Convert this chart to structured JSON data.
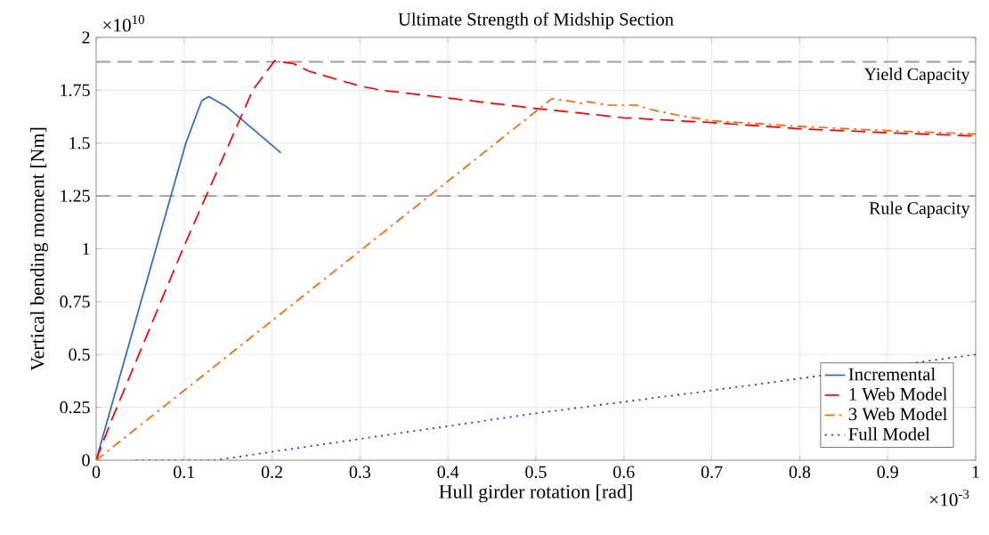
{
  "chart_data": {
    "type": "line",
    "title": "Ultimate Strength of Midship Section",
    "xlabel": "Hull girder rotation [rad]",
    "ylabel": "Vertical bending moment [Nm]",
    "series": [
      {
        "name": "Incremental",
        "color": "#3366cc",
        "line_style": "solid",
        "x": [
          0,
          0.102,
          0.12,
          0.128,
          0.149,
          0.21
        ],
        "values": [
          0,
          1.5,
          1.7,
          1.72,
          1.67,
          1.454
        ]
      },
      {
        "name": "1 Web Model",
        "color": "#ff0000",
        "line_style": "dashed",
        "x": [
          0,
          0.017,
          0.0986,
          0.178,
          0.203,
          0.225,
          0.242,
          0.3,
          0.325,
          0.5,
          0.6,
          0.7,
          0.8,
          0.9,
          1.0
        ],
        "values": [
          0,
          0.185,
          1.0,
          1.75,
          1.89,
          1.875,
          1.84,
          1.77,
          1.75,
          1.664,
          1.62,
          1.597,
          1.568,
          1.549,
          1.534
        ]
      },
      {
        "name": "3 Web Model",
        "color": "#ff6600",
        "line_style": "dashdot",
        "x": [
          0,
          0.518,
          0.541,
          0.55,
          0.557,
          0.582,
          0.6,
          0.614,
          0.63,
          0.664,
          0.7,
          0.8,
          0.9,
          1.0
        ],
        "values": [
          0,
          1.71,
          1.697,
          1.687,
          1.697,
          1.68,
          1.68,
          1.68,
          1.66,
          1.63,
          1.606,
          1.579,
          1.559,
          1.543
        ]
      },
      {
        "name": "Full Model",
        "color": "#7a0f7a",
        "line_style": "dotted",
        "x": [
          0.045,
          0.135,
          0.205,
          0.5,
          0.7,
          1.0
        ],
        "values": [
          0,
          0,
          0.043,
          0.222,
          0.33,
          0.5
        ]
      }
    ],
    "xlim": [
      0,
      1
    ],
    "ylim": [
      0,
      2
    ],
    "xticks": [
      0,
      0.1,
      0.2,
      0.3,
      0.4,
      0.5,
      0.6,
      0.7,
      0.8,
      0.9,
      1
    ],
    "yticks": [
      0,
      0.25,
      0.5,
      0.75,
      1,
      1.25,
      1.5,
      1.75,
      2
    ],
    "ref_lines": [
      {
        "axis": "y",
        "value": 1.884,
        "label": "Yield Capacity",
        "color": "#999999",
        "line_style": "dashed"
      },
      {
        "axis": "y",
        "value": 1.25,
        "label": "Rule Capacity",
        "color": "#999999",
        "line_style": "dashed"
      }
    ],
    "annotations": [
      "×10$^{10}$",
      "×10$^{-3}$"
    ],
    "grid": true,
    "legend": "bottom right"
  }
}
